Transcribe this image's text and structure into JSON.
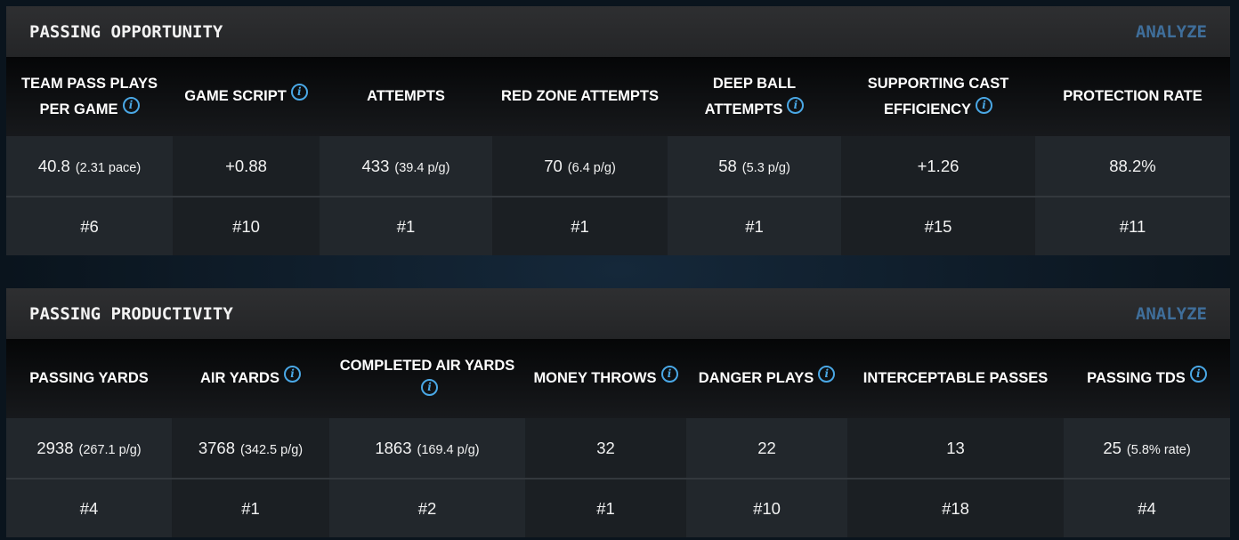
{
  "colors": {
    "accent": "#4aa8e6",
    "analyze": "#3f6e9a"
  },
  "sections": [
    {
      "title": "PASSING OPPORTUNITY",
      "analyze_label": "ANALYZE",
      "columns": [
        {
          "label": "TEAM PASS PLAYS PER GAME",
          "info": true,
          "value": "40.8",
          "sub": "(2.31 pace)",
          "rank": "#6"
        },
        {
          "label": "GAME SCRIPT",
          "info": true,
          "value": "+0.88",
          "sub": "",
          "rank": "#10"
        },
        {
          "label": "ATTEMPTS",
          "info": false,
          "value": "433",
          "sub": "(39.4 p/g)",
          "rank": "#1"
        },
        {
          "label": "RED ZONE ATTEMPTS",
          "info": false,
          "value": "70",
          "sub": "(6.4 p/g)",
          "rank": "#1"
        },
        {
          "label": "DEEP BALL ATTEMPTS",
          "info": true,
          "value": "58",
          "sub": "(5.3 p/g)",
          "rank": "#1"
        },
        {
          "label": "SUPPORTING CAST EFFICIENCY",
          "info": true,
          "value": "+1.26",
          "sub": "",
          "rank": "#15"
        },
        {
          "label": "PROTECTION RATE",
          "info": false,
          "value": "88.2%",
          "sub": "",
          "rank": "#11"
        }
      ]
    },
    {
      "title": "PASSING PRODUCTIVITY",
      "analyze_label": "ANALYZE",
      "columns": [
        {
          "label": "PASSING YARDS",
          "info": false,
          "value": "2938",
          "sub": "(267.1 p/g)",
          "rank": "#4"
        },
        {
          "label": "AIR YARDS",
          "info": true,
          "value": "3768",
          "sub": "(342.5 p/g)",
          "rank": "#1"
        },
        {
          "label": "COMPLETED AIR YARDS",
          "info": true,
          "value": "1863",
          "sub": "(169.4 p/g)",
          "rank": "#2"
        },
        {
          "label": "MONEY THROWS",
          "info": true,
          "value": "32",
          "sub": "",
          "rank": "#1"
        },
        {
          "label": "DANGER PLAYS",
          "info": true,
          "value": "22",
          "sub": "",
          "rank": "#10"
        },
        {
          "label": "INTERCEPTABLE PASSES",
          "info": false,
          "value": "13",
          "sub": "",
          "rank": "#18"
        },
        {
          "label": "PASSING TDS",
          "info": true,
          "value": "25",
          "sub": "(5.8% rate)",
          "rank": "#4"
        }
      ]
    }
  ]
}
